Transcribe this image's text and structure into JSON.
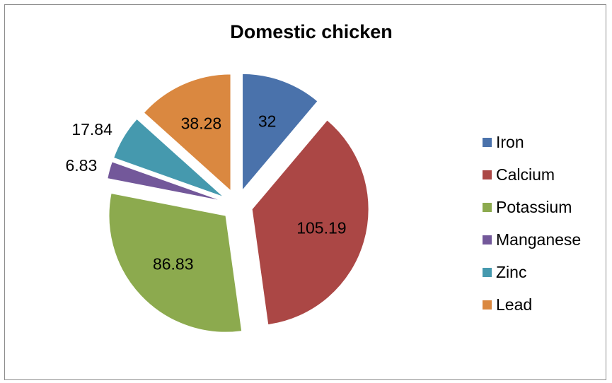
{
  "chart_data": {
    "type": "pie",
    "title": "Domestic chicken",
    "exploded": true,
    "legend_position": "right",
    "slices": [
      {
        "label": "Iron",
        "value": 32,
        "display": "32",
        "color": "#4A72AB"
      },
      {
        "label": "Calcium",
        "value": 105.19,
        "display": "105.19",
        "color": "#AB4745"
      },
      {
        "label": "Potassium",
        "value": 86.83,
        "display": "86.83",
        "color": "#8CAA4E"
      },
      {
        "label": "Manganese",
        "value": 6.83,
        "display": "6.83",
        "color": "#73589A"
      },
      {
        "label": "Zinc",
        "value": 17.84,
        "display": "17.84",
        "color": "#4599AE"
      },
      {
        "label": "Lead",
        "value": 38.28,
        "display": "38.28",
        "color": "#DA8840"
      }
    ]
  }
}
